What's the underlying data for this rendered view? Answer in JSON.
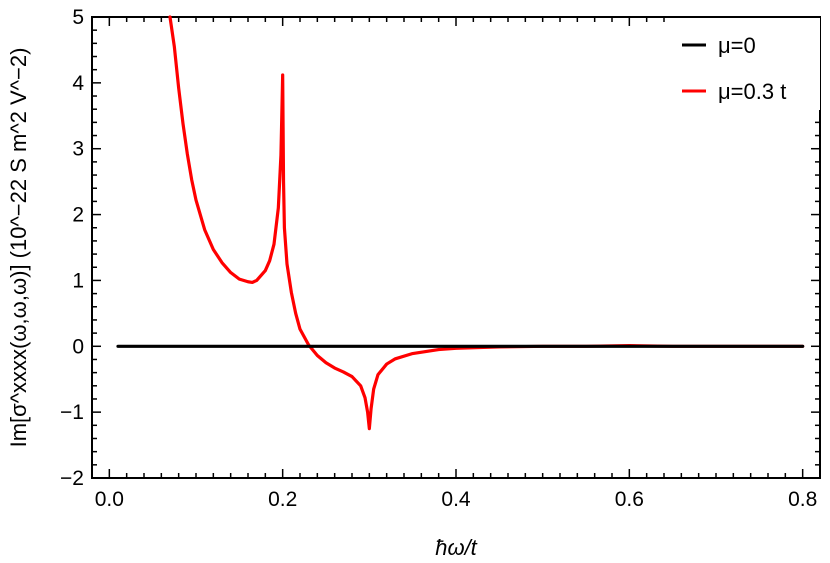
{
  "chart_data": {
    "type": "line",
    "xlabel": "ħω/t",
    "ylabel": "Im[σ^xxxx(ω,ω,ω)] (10^−22 S m^2 V^−2)",
    "xlim": [
      -0.02,
      0.82
    ],
    "ylim": [
      -2,
      5
    ],
    "x_ticks": [
      0.0,
      0.2,
      0.4,
      0.6,
      0.8
    ],
    "x_tick_labels": [
      "0.0",
      "0.2",
      "0.4",
      "0.6",
      "0.8"
    ],
    "y_ticks": [
      -2,
      -1,
      0,
      1,
      2,
      3,
      4,
      5
    ],
    "y_tick_labels": [
      "−2",
      "−1",
      "0",
      "1",
      "2",
      "3",
      "4",
      "5"
    ],
    "grid": false,
    "legend_position": "top-right",
    "series": [
      {
        "name": "μ=0",
        "color": "#000000",
        "x": [
          0.01,
          0.1,
          0.2,
          0.3,
          0.4,
          0.5,
          0.6,
          0.7,
          0.8
        ],
        "y": [
          0,
          0,
          0,
          0,
          0,
          0,
          0,
          0,
          0
        ]
      },
      {
        "name": "μ=0.3 t",
        "color": "#ff0000",
        "x": [
          0.07,
          0.075,
          0.08,
          0.085,
          0.09,
          0.095,
          0.1,
          0.11,
          0.12,
          0.13,
          0.14,
          0.15,
          0.16,
          0.165,
          0.17,
          0.18,
          0.185,
          0.19,
          0.195,
          0.198,
          0.199,
          0.2,
          0.201,
          0.202,
          0.205,
          0.21,
          0.215,
          0.22,
          0.23,
          0.24,
          0.25,
          0.26,
          0.27,
          0.28,
          0.29,
          0.295,
          0.298,
          0.3,
          0.302,
          0.305,
          0.31,
          0.32,
          0.33,
          0.35,
          0.38,
          0.4,
          0.45,
          0.5,
          0.55,
          0.6,
          0.65,
          0.7,
          0.75,
          0.8
        ],
        "y": [
          5.0,
          4.55,
          3.92,
          3.38,
          2.92,
          2.53,
          2.22,
          1.77,
          1.47,
          1.27,
          1.12,
          1.02,
          0.98,
          0.97,
          1.0,
          1.15,
          1.3,
          1.55,
          2.1,
          2.9,
          3.5,
          4.12,
          2.5,
          1.8,
          1.25,
          0.82,
          0.5,
          0.26,
          0.02,
          -0.14,
          -0.25,
          -0.33,
          -0.39,
          -0.46,
          -0.6,
          -0.78,
          -1.0,
          -1.25,
          -0.95,
          -0.65,
          -0.43,
          -0.27,
          -0.19,
          -0.11,
          -0.05,
          -0.03,
          -0.01,
          0.0,
          0.0,
          0.01,
          0.0,
          0.0,
          0.0,
          0.0
        ]
      }
    ]
  }
}
